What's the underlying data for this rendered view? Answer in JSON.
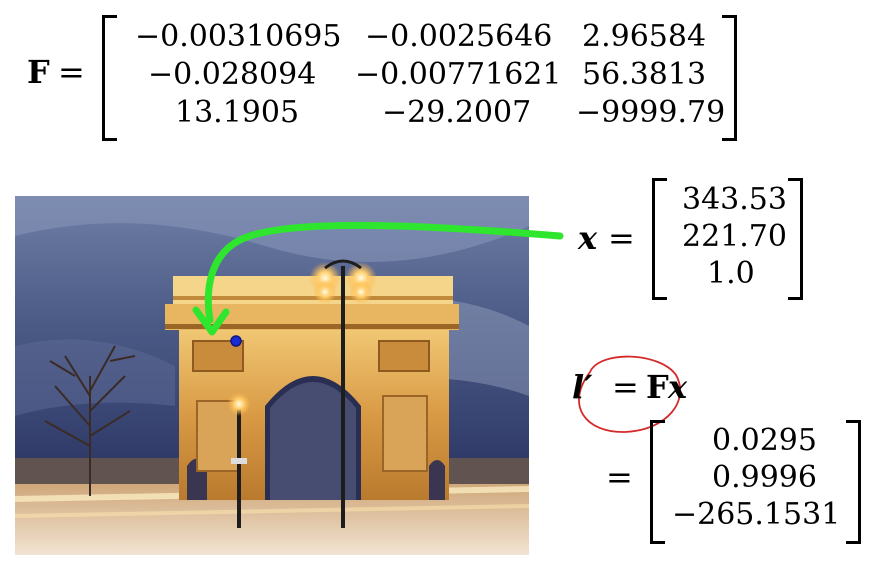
{
  "matrix_F": {
    "name": "F",
    "equals": "=",
    "rows": [
      [
        "−0.00310695",
        "−0.0025646",
        "2.96584"
      ],
      [
        "−0.028094",
        "−0.00771621",
        "56.3813"
      ],
      [
        "13.1905",
        "−29.2007",
        "−9999.79"
      ]
    ]
  },
  "point_x": {
    "name": "x",
    "equals": "=",
    "values": [
      "343.53",
      "221.70",
      "1.0"
    ]
  },
  "epipolar_line": {
    "lhs": "l′",
    "equals": "=",
    "rhs_F": "F",
    "rhs_x": "x",
    "result_equals": "=",
    "values": [
      "0.0295",
      "0.9996",
      "−265.1531"
    ]
  },
  "colors": {
    "arrow": "#2ee62e",
    "point": "#1a2bd6",
    "circle_annotation": "#d42a2a"
  },
  "icons": {
    "photo": "arc-de-triomphe-photo"
  }
}
